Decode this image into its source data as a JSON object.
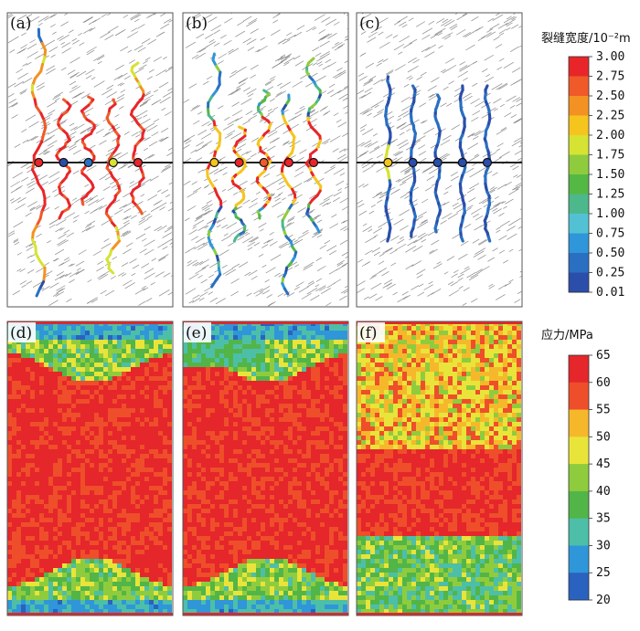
{
  "panels": {
    "top": [
      {
        "id": "a",
        "label": "(a)",
        "wellbores": 5,
        "fracture_width_level": "high"
      },
      {
        "id": "b",
        "label": "(b)",
        "wellbores": 5,
        "fracture_width_level": "medium"
      },
      {
        "id": "c",
        "label": "(c)",
        "wellbores": 5,
        "fracture_width_level": "low"
      }
    ],
    "bottom": [
      {
        "id": "d",
        "label": "(d)",
        "pattern": "symmetric"
      },
      {
        "id": "e",
        "label": "(e)",
        "pattern": "symmetric-shifted"
      },
      {
        "id": "f",
        "label": "(f)",
        "pattern": "uniform"
      }
    ]
  },
  "colorbar_width": {
    "title": "裂缝宽度/10⁻²m",
    "ticks": [
      "3.00",
      "2.75",
      "2.50",
      "2.25",
      "2.00",
      "1.75",
      "1.50",
      "1.25",
      "1.00",
      "0.75",
      "0.50",
      "0.25",
      "0.01"
    ],
    "colors": [
      "#e8262a",
      "#ef5a28",
      "#f39222",
      "#f5c51d",
      "#d6e332",
      "#8fcc3d",
      "#54b845",
      "#4db88c",
      "#53c1d4",
      "#2f96d9",
      "#2a6fc2",
      "#2a4eaa"
    ]
  },
  "colorbar_stress": {
    "title": "应力/MPa",
    "ticks": [
      "65",
      "60",
      "55",
      "50",
      "45",
      "40",
      "35",
      "30",
      "25",
      "20"
    ],
    "colors": [
      "#e5262b",
      "#ef4e2a",
      "#f6b82b",
      "#e9e43a",
      "#8fcc3d",
      "#52b548",
      "#4dbfa8",
      "#2f96d9",
      "#2a62bf"
    ]
  },
  "chart_data": {
    "type": "heatmap",
    "note_fields": {
      "panels": 6
    },
    "stress_range": [
      20,
      65
    ],
    "width_range": [
      0.01,
      3.0
    ]
  }
}
